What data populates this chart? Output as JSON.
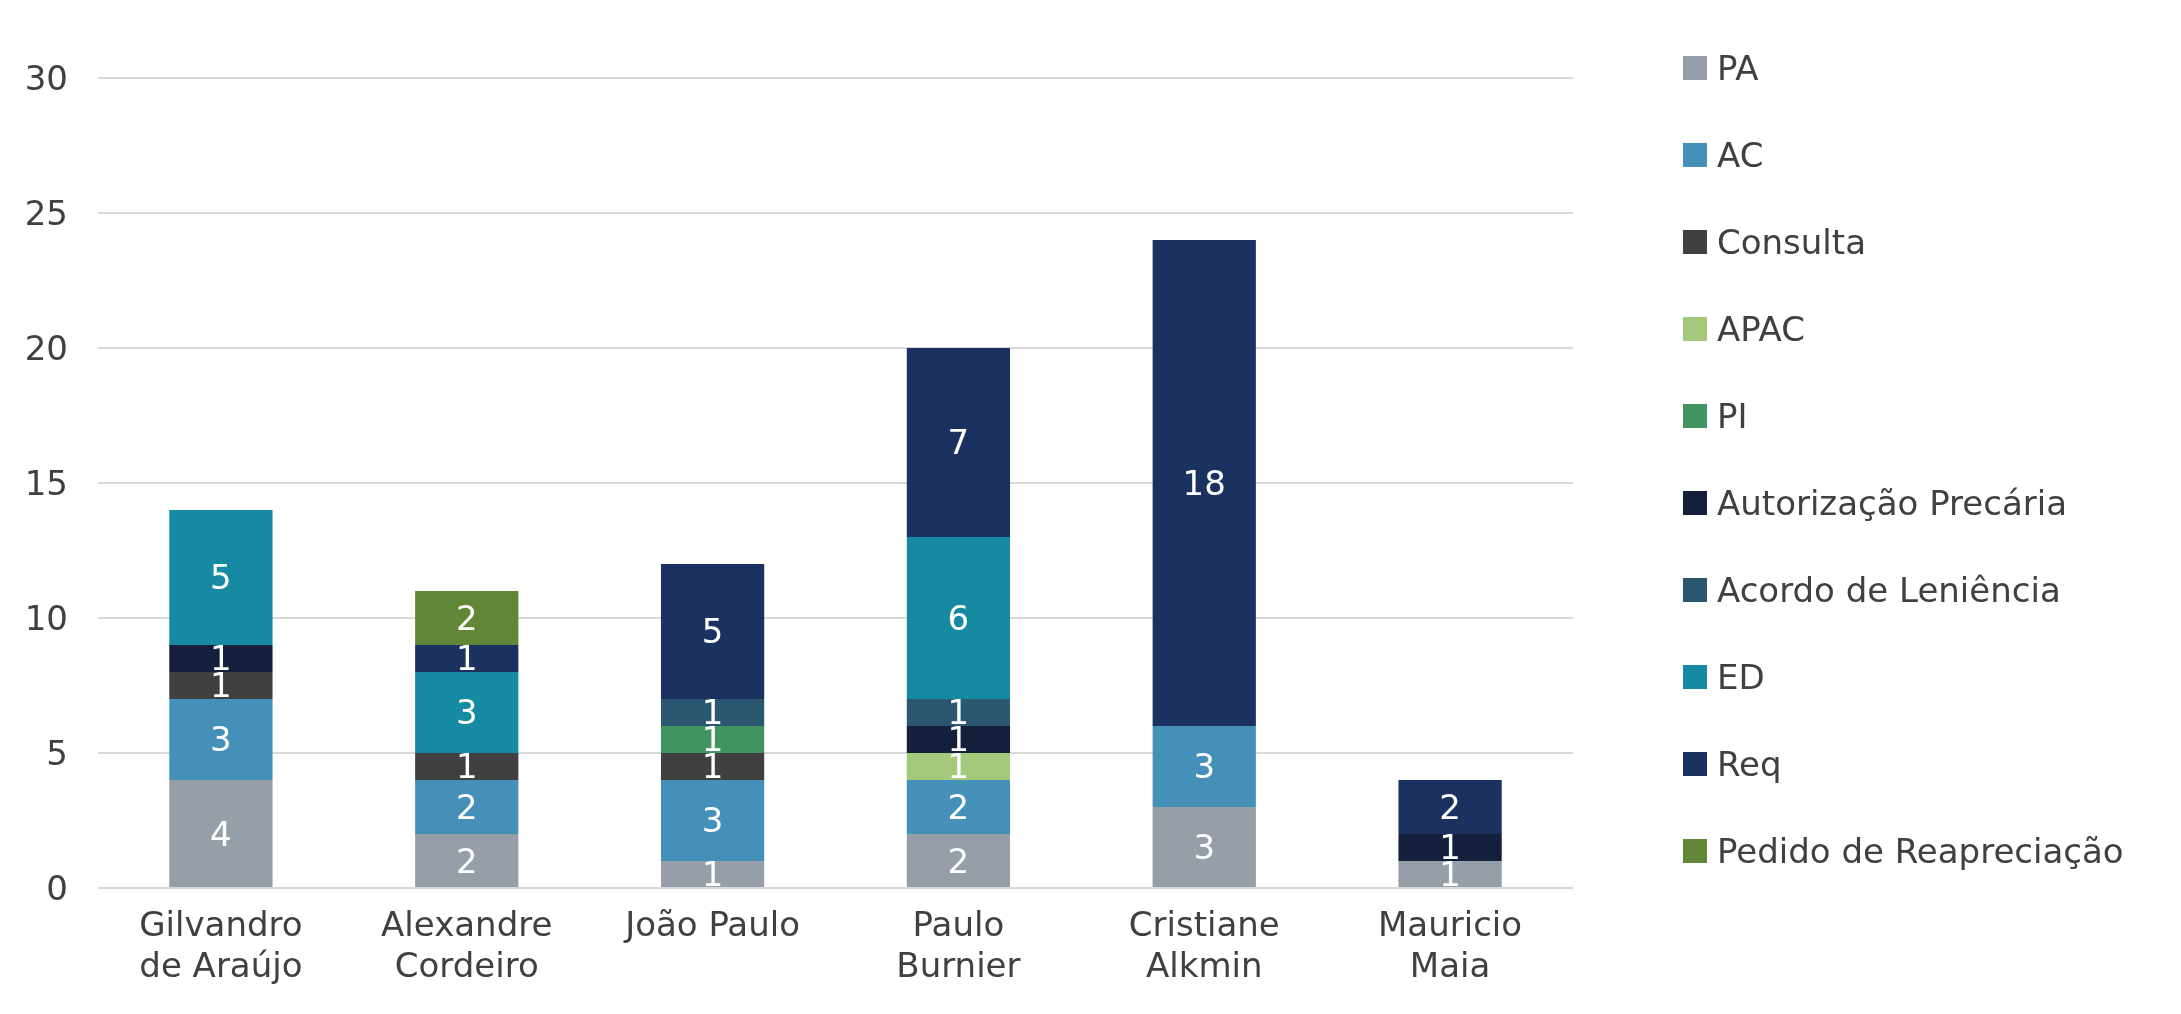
{
  "chart_data": {
    "type": "bar",
    "stacked": true,
    "categories": [
      "Gilvandro de Araújo",
      "Alexandre Cordeiro",
      "João Paulo",
      "Paulo Burnier",
      "Cristiane Alkmin",
      "Mauricio Maia"
    ],
    "series": [
      {
        "name": "PA",
        "color": "#969fa8",
        "values": [
          4,
          2,
          1,
          2,
          3,
          1
        ]
      },
      {
        "name": "AC",
        "color": "#4590b9",
        "values": [
          3,
          2,
          3,
          2,
          3,
          null
        ]
      },
      {
        "name": "Consulta",
        "color": "#404040",
        "values": [
          1,
          1,
          1,
          null,
          null,
          null
        ]
      },
      {
        "name": "APAC",
        "color": "#a5c97a",
        "values": [
          null,
          null,
          null,
          1,
          null,
          null
        ]
      },
      {
        "name": "PI",
        "color": "#419460",
        "values": [
          null,
          null,
          1,
          null,
          null,
          null
        ]
      },
      {
        "name": "Autorização Precária",
        "color": "#131f3b",
        "values": [
          1,
          null,
          null,
          1,
          null,
          1
        ]
      },
      {
        "name": "Acordo de Leniência",
        "color": "#2b5870",
        "values": [
          null,
          null,
          1,
          1,
          null,
          null
        ]
      },
      {
        "name": "ED",
        "color": "#168aa3",
        "values": [
          5,
          3,
          null,
          6,
          null,
          null
        ]
      },
      {
        "name": "Req",
        "color": "#1b3261",
        "values": [
          null,
          1,
          5,
          7,
          18,
          2
        ]
      },
      {
        "name": "Pedido de Reapreciação",
        "color": "#618637",
        "values": [
          null,
          2,
          null,
          null,
          null,
          null
        ]
      }
    ],
    "ylim": [
      0,
      30
    ],
    "yticks": [
      0,
      5,
      10,
      15,
      20,
      25,
      30
    ],
    "grid": "y",
    "legend": "right",
    "data_labels": true
  }
}
